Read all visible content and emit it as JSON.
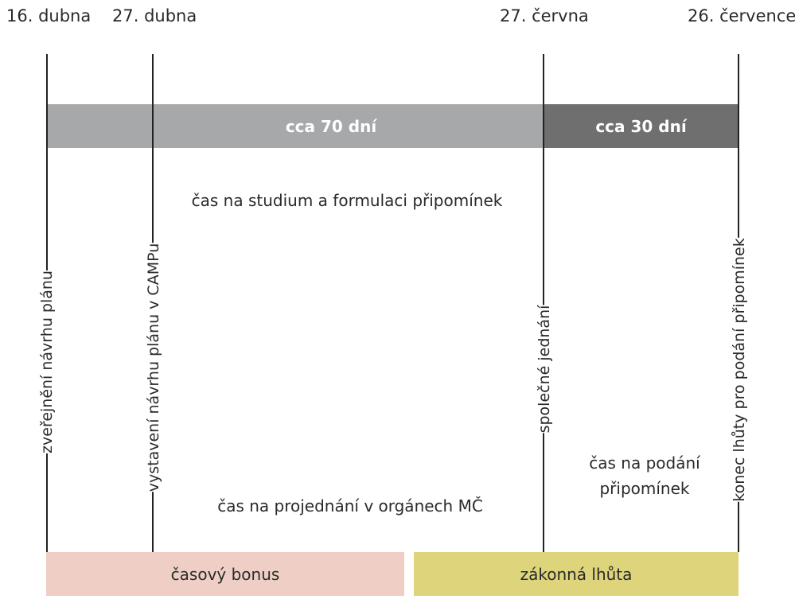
{
  "dates": [
    "16. dubna",
    "27. dubna",
    "27. června",
    "26. července"
  ],
  "bars": {
    "period_70": "cca 70 dní",
    "period_30": "cca 30 dní",
    "bonus": "časový bonus",
    "legal": "zákonná lhůta"
  },
  "milestones": [
    "zveřejnění návrhu plánu",
    "vystavení návrhu plánu v CAMPu",
    "společné jednání",
    "konec lhůty pro podání připomínek"
  ],
  "notes": {
    "study": "čas na studium a formulaci připomínek",
    "discussion": "čas na projednání v orgánech MČ",
    "submit_line1": "čas na podání",
    "submit_line2": "připomínek"
  },
  "colors": {
    "bar_light": "#a7a8aa",
    "bar_dark": "#6f6f6f",
    "bonus": "#efcfc5",
    "legal": "#ddd47c"
  }
}
